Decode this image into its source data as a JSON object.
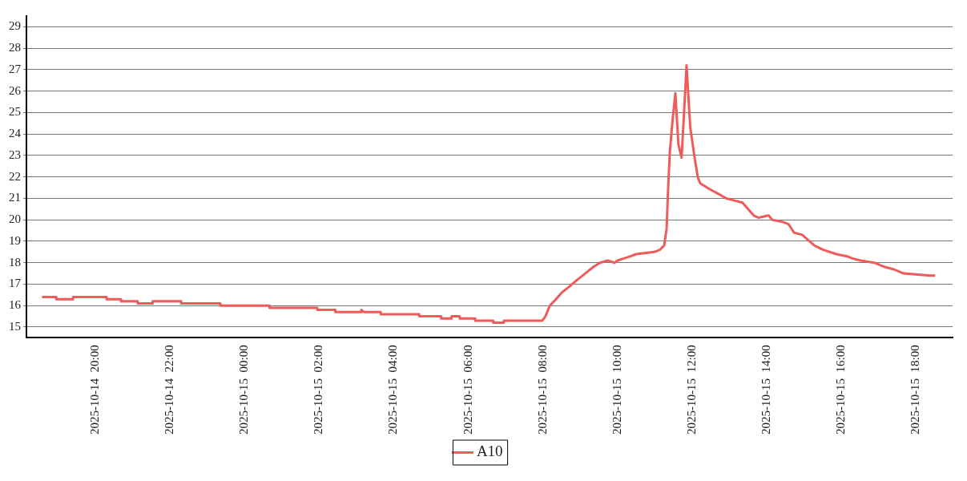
{
  "chart_data": {
    "type": "line",
    "xlim": [
      "2025-10-14T18:09",
      "2025-10-15T18:59"
    ],
    "ylim": [
      14.5,
      29.5
    ],
    "xticks": [
      {
        "value": "2025-10-14T20:00",
        "label": "2025-10-14  20:00"
      },
      {
        "value": "2025-10-14T22:00",
        "label": "2025-10-14  22:00"
      },
      {
        "value": "2025-10-15T00:00",
        "label": "2025-10-15  00:00"
      },
      {
        "value": "2025-10-15T02:00",
        "label": "2025-10-15  02:00"
      },
      {
        "value": "2025-10-15T04:00",
        "label": "2025-10-15  04:00"
      },
      {
        "value": "2025-10-15T06:00",
        "label": "2025-10-15  06:00"
      },
      {
        "value": "2025-10-15T08:00",
        "label": "2025-10-15  08:00"
      },
      {
        "value": "2025-10-15T10:00",
        "label": "2025-10-15  10:00"
      },
      {
        "value": "2025-10-15T12:00",
        "label": "2025-10-15  12:00"
      },
      {
        "value": "2025-10-15T14:00",
        "label": "2025-10-15  14:00"
      },
      {
        "value": "2025-10-15T16:00",
        "label": "2025-10-15  16:00"
      },
      {
        "value": "2025-10-15T18:00",
        "label": "2025-10-15  18:00"
      }
    ],
    "yticks": [
      15,
      16,
      17,
      18,
      19,
      20,
      21,
      22,
      23,
      24,
      25,
      26,
      27,
      28,
      29
    ],
    "grid": "y",
    "legend": "bottom",
    "marker": "none",
    "line_style": "solid",
    "series": [
      {
        "name": "A10",
        "color": "#ef5a5a",
        "x": [
          "2025-10-14T18:34",
          "2025-10-14T18:57",
          "2025-10-14T18:57",
          "2025-10-14T19:24",
          "2025-10-14T19:24",
          "2025-10-14T20:18",
          "2025-10-14T20:18",
          "2025-10-14T20:41",
          "2025-10-14T20:41",
          "2025-10-14T21:08",
          "2025-10-14T21:08",
          "2025-10-14T21:32",
          "2025-10-14T21:32",
          "2025-10-14T22:18",
          "2025-10-14T22:18",
          "2025-10-14T23:21",
          "2025-10-14T23:21",
          "2025-10-15T00:40",
          "2025-10-15T00:40",
          "2025-10-15T01:57",
          "2025-10-15T01:57",
          "2025-10-15T02:26",
          "2025-10-15T02:26",
          "2025-10-15T03:08",
          "2025-10-15T03:08",
          "2025-10-15T03:12",
          "2025-10-15T03:39",
          "2025-10-15T03:39",
          "2025-10-15T04:41",
          "2025-10-15T04:41",
          "2025-10-15T05:16",
          "2025-10-15T05:16",
          "2025-10-15T05:33",
          "2025-10-15T05:33",
          "2025-10-15T05:46",
          "2025-10-15T05:46",
          "2025-10-15T06:11",
          "2025-10-15T06:11",
          "2025-10-15T06:40",
          "2025-10-15T06:40",
          "2025-10-15T06:57",
          "2025-10-15T06:57",
          "2025-10-15T07:59",
          "2025-10-15T08:04",
          "2025-10-15T08:11",
          "2025-10-15T08:21",
          "2025-10-15T08:30",
          "2025-10-15T08:43",
          "2025-10-15T08:55",
          "2025-10-15T09:08",
          "2025-10-15T09:21",
          "2025-10-15T09:32",
          "2025-10-15T09:44",
          "2025-10-15T09:55",
          "2025-10-15T10:00",
          "2025-10-15T10:10",
          "2025-10-15T10:21",
          "2025-10-15T10:30",
          "2025-10-15T10:59",
          "2025-10-15T11:08",
          "2025-10-15T11:15",
          "2025-10-15T11:19",
          "2025-10-15T11:21",
          "2025-10-15T11:24",
          "2025-10-15T11:28",
          "2025-10-15T11:33",
          "2025-10-15T11:38",
          "2025-10-15T11:43",
          "2025-10-15T11:47",
          "2025-10-15T11:51",
          "2025-10-15T11:57",
          "2025-10-15T12:04",
          "2025-10-15T12:09",
          "2025-10-15T12:13",
          "2025-10-15T12:30",
          "2025-10-15T12:43",
          "2025-10-15T12:55",
          "2025-10-15T13:08",
          "2025-10-15T13:21",
          "2025-10-15T13:39",
          "2025-10-15T13:47",
          "2025-10-15T14:03",
          "2025-10-15T14:09",
          "2025-10-15T14:26",
          "2025-10-15T14:35",
          "2025-10-15T14:44",
          "2025-10-15T14:57",
          "2025-10-15T15:05",
          "2025-10-15T15:17",
          "2025-10-15T15:31",
          "2025-10-15T15:52",
          "2025-10-15T16:09",
          "2025-10-15T16:18",
          "2025-10-15T16:31",
          "2025-10-15T16:53",
          "2025-10-15T17:10",
          "2025-10-15T17:23",
          "2025-10-15T17:32",
          "2025-10-15T17:40",
          "2025-10-15T18:23",
          "2025-10-15T18:31"
        ],
        "values": [
          16.4,
          16.4,
          16.3,
          16.3,
          16.4,
          16.4,
          16.3,
          16.3,
          16.2,
          16.2,
          16.1,
          16.1,
          16.2,
          16.2,
          16.1,
          16.1,
          16.0,
          16.0,
          15.9,
          15.9,
          15.8,
          15.8,
          15.7,
          15.7,
          15.8,
          15.7,
          15.7,
          15.6,
          15.6,
          15.5,
          15.5,
          15.4,
          15.4,
          15.5,
          15.5,
          15.4,
          15.4,
          15.3,
          15.3,
          15.2,
          15.2,
          15.3,
          15.3,
          15.5,
          16.0,
          16.3,
          16.6,
          16.9,
          17.2,
          17.5,
          17.8,
          18.0,
          18.1,
          18.0,
          18.1,
          18.2,
          18.3,
          18.4,
          18.5,
          18.6,
          18.8,
          19.6,
          21.2,
          23.1,
          24.5,
          25.9,
          23.5,
          22.9,
          25.0,
          27.2,
          24.3,
          22.9,
          22.0,
          21.7,
          21.4,
          21.2,
          21.0,
          20.9,
          20.8,
          20.2,
          20.1,
          20.2,
          20.0,
          19.9,
          19.8,
          19.4,
          19.3,
          19.1,
          18.8,
          18.6,
          18.4,
          18.3,
          18.2,
          18.1,
          18.0,
          17.8,
          17.7,
          17.6,
          17.5,
          17.4,
          17.4
        ]
      }
    ]
  }
}
